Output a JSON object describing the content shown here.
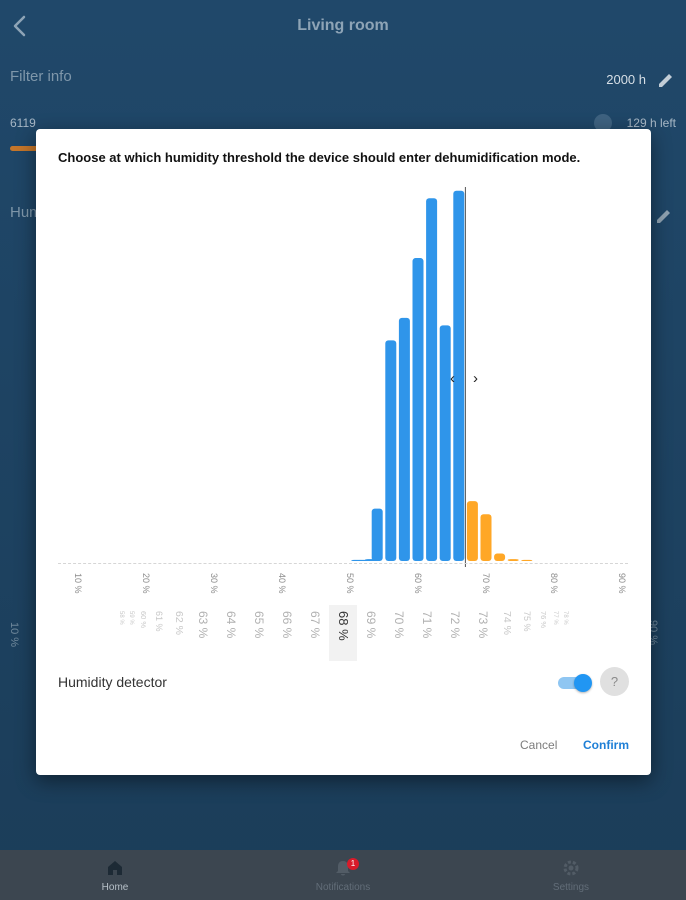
{
  "header": {
    "title": "Living room"
  },
  "filter": {
    "label": "Filter info",
    "total": "2000 h",
    "device_id": "6119",
    "remaining": "129 h left",
    "progress_fraction": 0.06
  },
  "humidity": {
    "label_partial": "Hum"
  },
  "side_ticks": {
    "left": "10 %",
    "right": "90 %"
  },
  "dialog": {
    "prompt": "Choose at which humidity threshold the device should enter dehumidification mode.",
    "detector_label": "Humidity detector",
    "detector_on": true,
    "help_label": "?",
    "cancel_label": "Cancel",
    "confirm_label": "Confirm"
  },
  "chart_data": {
    "type": "bar",
    "x_ticks": [
      "10 %",
      "20 %",
      "30 %",
      "40 %",
      "50 %",
      "60 %",
      "70 %",
      "80 %",
      "90 %"
    ],
    "xlim": [
      10,
      90
    ],
    "threshold": 68,
    "colors": {
      "below": "#2f95ea",
      "above": "#ffa726"
    },
    "bars": [
      {
        "x": 51,
        "value": 0.3
      },
      {
        "x": 52,
        "value": 0.3
      },
      {
        "x": 53,
        "value": 0.5
      },
      {
        "x": 54,
        "value": 14
      },
      {
        "x": 56,
        "value": 59
      },
      {
        "x": 58,
        "value": 65
      },
      {
        "x": 60,
        "value": 81
      },
      {
        "x": 62,
        "value": 97
      },
      {
        "x": 64,
        "value": 63
      },
      {
        "x": 66,
        "value": 99
      },
      {
        "x": 68,
        "value": 16
      },
      {
        "x": 70,
        "value": 12.5
      },
      {
        "x": 72,
        "value": 2
      },
      {
        "x": 74,
        "value": 0.5
      },
      {
        "x": 76,
        "value": 0.3
      }
    ],
    "ylim": [
      0,
      100
    ]
  },
  "picker": {
    "items": [
      "58 %",
      "59 %",
      "60 %",
      "61 %",
      "62 %",
      "63 %",
      "64 %",
      "65 %",
      "66 %",
      "67 %",
      "68 %",
      "69 %",
      "70 %",
      "71 %",
      "72 %",
      "73 %",
      "74 %",
      "75 %",
      "76 %",
      "77 %",
      "78 %"
    ],
    "selected": "68 %"
  },
  "nav": [
    {
      "label": "Home",
      "icon": "home-icon",
      "active": true
    },
    {
      "label": "Notifications",
      "icon": "bell-icon",
      "badge": "1"
    },
    {
      "label": "Settings",
      "icon": "gear-icon"
    }
  ]
}
